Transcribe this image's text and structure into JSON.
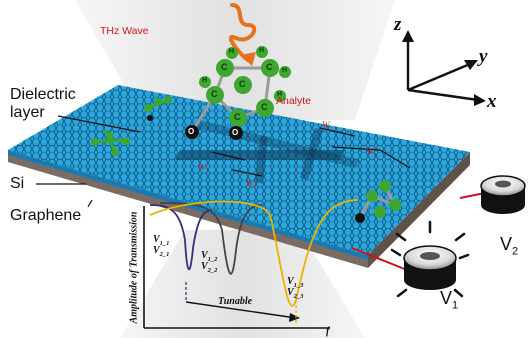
{
  "labels": {
    "thz_wave": "THz Wave",
    "analyte": "Analyte",
    "dielectric_layer_line1": "Dielectric",
    "dielectric_layer_line2": "layer",
    "si": "Si",
    "graphene": "Graphene",
    "amplitude": "Amplitude of Transmission",
    "tunable": "Tunable",
    "f": "f"
  },
  "axes": {
    "x": "x",
    "y": "y",
    "z": "z"
  },
  "voltages": {
    "v1": {
      "base": "V",
      "sub": "1"
    },
    "v2": {
      "base": "V",
      "sub": "2"
    }
  },
  "dims": {
    "w1": {
      "base": "W",
      "sub": "1"
    },
    "w2": {
      "base": "W",
      "sub": "2"
    },
    "l1": {
      "base": "W",
      "sub": "1"
    },
    "l2": {
      "base": "W",
      "sub": "2"
    }
  },
  "graph_labels": {
    "p1a": {
      "base": "V",
      "sub": "1_1"
    },
    "p1b": {
      "base": "V",
      "sub": "2_1"
    },
    "p2a": {
      "base": "V",
      "sub": "1_2"
    },
    "p2b": {
      "base": "V",
      "sub": "2_2"
    },
    "p3a": {
      "base": "V",
      "sub": "1_3"
    },
    "p3b": {
      "base": "V",
      "sub": "2_3"
    }
  },
  "atom_labels": {
    "c": "C",
    "h": "H",
    "o": "O"
  },
  "colors": {
    "cone": "#e9e9e9",
    "slab_top": "#29a8e0",
    "slab_edge": "#1a7bb3",
    "si_layer": "#7a6b63",
    "molecule_green": "#3ea631",
    "wave": "#e8701a",
    "curve_yellow": "#e7b400",
    "curve_gray": "#444444",
    "curve_purple": "#3a2a7a",
    "dim_red": "#d4131b"
  }
}
